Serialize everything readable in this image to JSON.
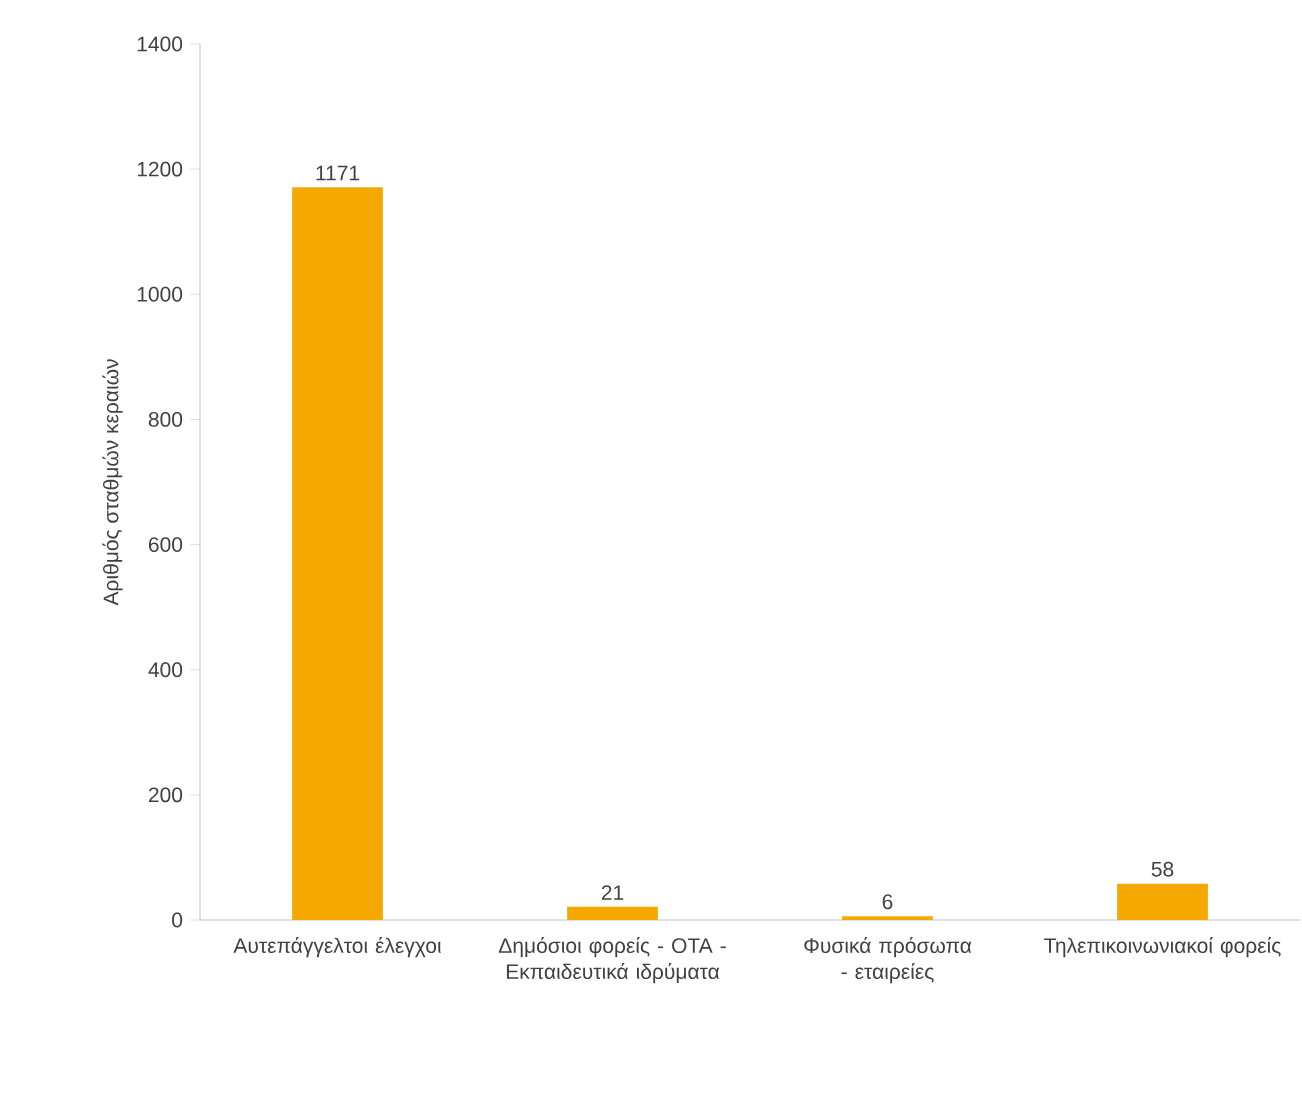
{
  "chart_data": {
    "type": "bar",
    "ylabel": "Αριθμός σταθμών κεραιών",
    "categories": [
      "Αυτεπάγγελτοι έλεγχοι",
      "Δημόσιοι φορείς - ΟΤΑ - Εκπαιδευτικά ιδρύματα",
      "Φυσικά πρόσωπα - εταιρείες",
      "Τηλεπικοινωνιακοί φορείς"
    ],
    "values": [
      1171,
      21,
      6,
      58
    ],
    "color": "#f5a800",
    "ylim": [
      0,
      1400
    ],
    "yticks": [
      0,
      200,
      400,
      600,
      800,
      1000,
      1200,
      1400
    ],
    "data_labels": true
  }
}
